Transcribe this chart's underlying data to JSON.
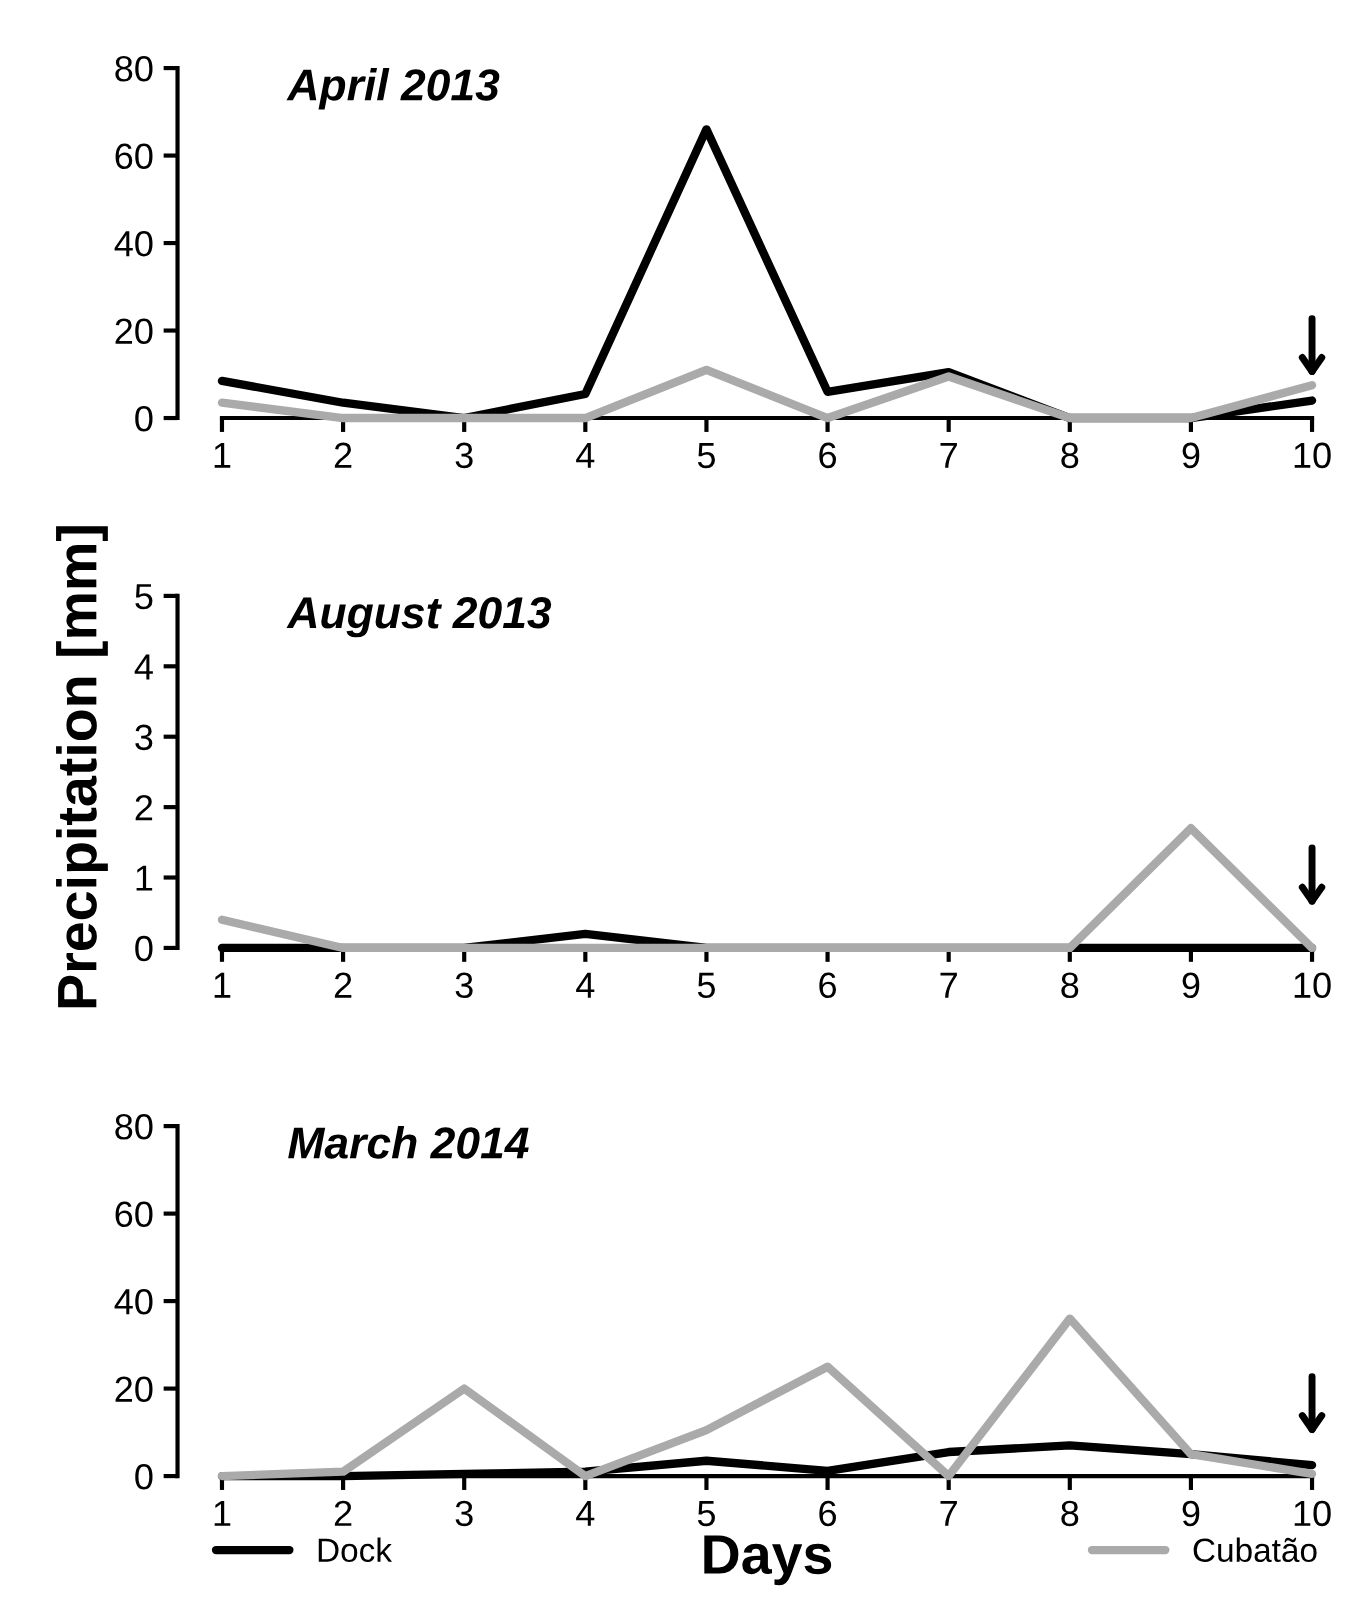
{
  "chart_data": [
    {
      "type": "line",
      "title": "April 2013",
      "x": [
        1,
        2,
        3,
        4,
        5,
        6,
        7,
        8,
        9,
        10
      ],
      "xlim": [
        1,
        10
      ],
      "xticks": [
        1,
        2,
        3,
        4,
        5,
        6,
        7,
        8,
        9,
        10
      ],
      "ylim": [
        0,
        80
      ],
      "yticks": [
        0,
        20,
        40,
        60,
        80
      ],
      "grid": false,
      "marker": "none",
      "line_style": "solid",
      "series": [
        {
          "color": "#000000",
          "values": [
            8.5,
            3.5,
            0,
            5.5,
            66,
            6,
            10.5,
            0,
            0,
            4
          ]
        },
        {
          "color": "#aaaaaa",
          "values": [
            3.5,
            0,
            0,
            0,
            11,
            0,
            9.5,
            0,
            0,
            7.5
          ]
        }
      ]
    },
    {
      "type": "line",
      "title": "August 2013",
      "ylabel": "Precipitation [mm]",
      "x": [
        1,
        2,
        3,
        4,
        5,
        6,
        7,
        8,
        9,
        10
      ],
      "xlim": [
        1,
        10
      ],
      "xticks": [
        1,
        2,
        3,
        4,
        5,
        6,
        7,
        8,
        9,
        10
      ],
      "ylim": [
        0,
        5
      ],
      "yticks": [
        0,
        1,
        2,
        3,
        4,
        5
      ],
      "grid": false,
      "marker": "none",
      "line_style": "solid",
      "series": [
        {
          "color": "#000000",
          "values": [
            0,
            0,
            0,
            0.2,
            0,
            0,
            0,
            0,
            0,
            0
          ]
        },
        {
          "color": "#aaaaaa",
          "values": [
            0.4,
            0,
            0,
            0,
            0,
            0,
            0,
            0,
            1.7,
            0
          ]
        }
      ]
    },
    {
      "type": "line",
      "title": "March 2014",
      "xlabel": "Days",
      "x": [
        1,
        2,
        3,
        4,
        5,
        6,
        7,
        8,
        9,
        10
      ],
      "xlim": [
        1,
        10
      ],
      "xticks": [
        1,
        2,
        3,
        4,
        5,
        6,
        7,
        8,
        9,
        10
      ],
      "ylim": [
        0,
        80
      ],
      "yticks": [
        0,
        20,
        40,
        60,
        80
      ],
      "grid": false,
      "marker": "none",
      "line_style": "solid",
      "legend": "bottom",
      "series": [
        {
          "name": "Dock",
          "color": "#000000",
          "values": [
            0,
            0,
            0.5,
            1,
            3.5,
            1.2,
            5.5,
            7,
            5,
            2.5
          ]
        },
        {
          "name": "Cubatão",
          "color": "#aaaaaa",
          "values": [
            0,
            1,
            20,
            0,
            10.5,
            25,
            0,
            36,
            5,
            0.5
          ]
        }
      ]
    }
  ]
}
